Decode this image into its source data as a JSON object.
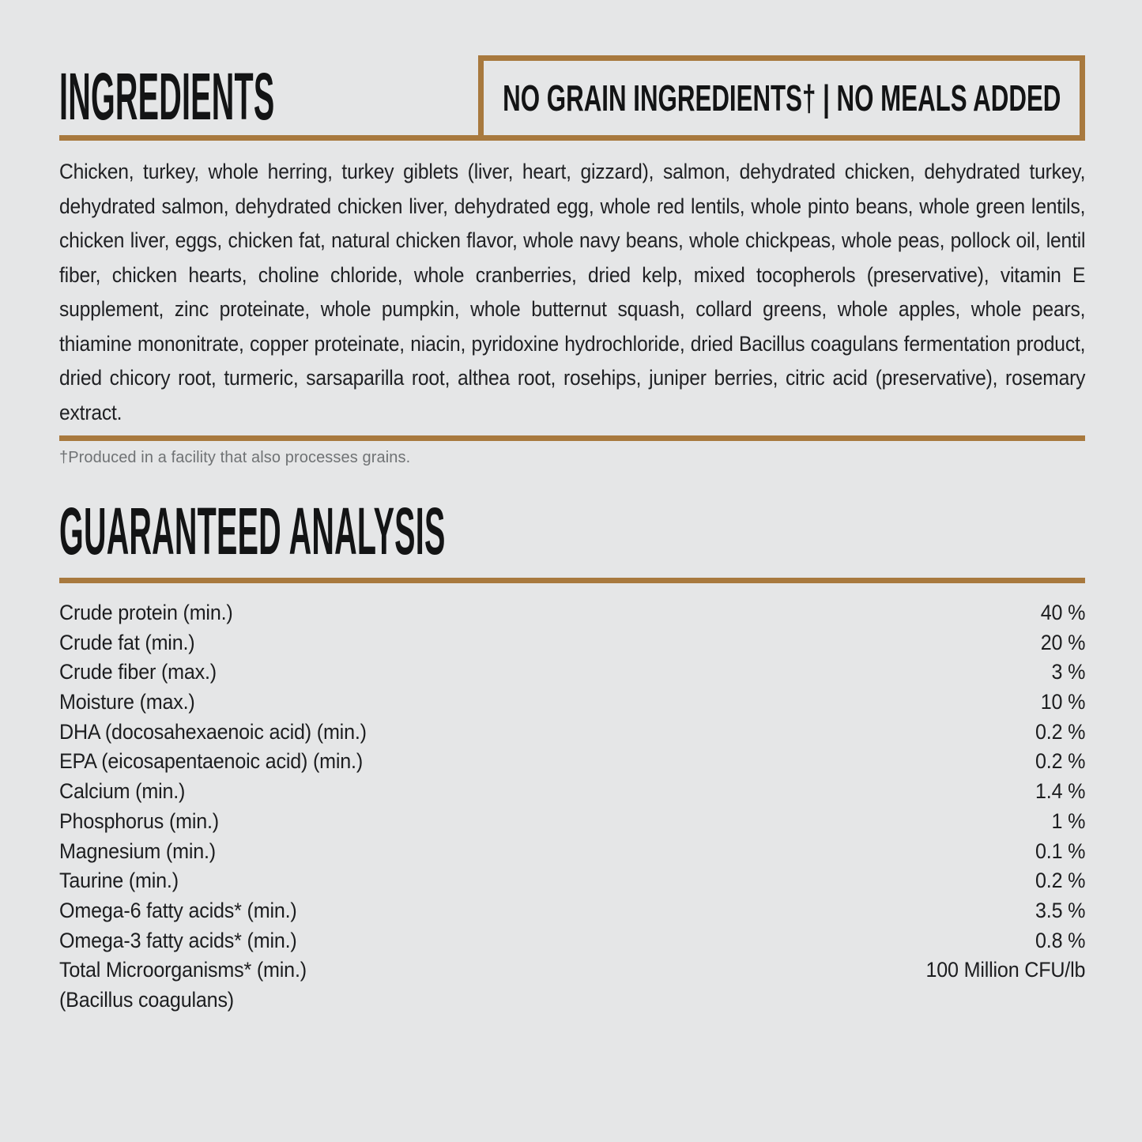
{
  "page": {
    "background_color": "#e5e6e7",
    "accent_color": "#a8793e"
  },
  "ingredients": {
    "title": "INGREDIENTS",
    "badge": "NO GRAIN INGREDIENTS† | NO MEALS ADDED",
    "body": "Chicken, turkey, whole herring, turkey giblets (liver, heart, gizzard), salmon, dehydrated chicken, dehydrated turkey, dehydrated salmon, dehydrated chicken liver, dehydrated egg, whole red lentils, whole pinto beans, whole green lentils, chicken liver, eggs, chicken fat, natural chicken flavor, whole navy beans, whole chickpeas, whole peas, pollock oil, lentil fiber, chicken hearts, choline chloride, whole cranberries, dried kelp, mixed tocopherols (preservative), vitamin E supplement, zinc proteinate, whole pumpkin, whole butternut squash, collard greens, whole apples, whole pears, thiamine mononitrate, copper proteinate, niacin, pyridoxine hydrochloride, dried Bacillus coagulans fermentation product, dried chicory root, turmeric, sarsaparilla root, althea root, rosehips, juniper berries, citric acid (preservative), rosemary extract.",
    "footnote": "†Produced in a facility that also processes grains."
  },
  "analysis": {
    "title": "GUARANTEED ANALYSIS",
    "rows": [
      {
        "label": "Crude protein (min.)",
        "value": "40 %"
      },
      {
        "label": "Crude fat (min.)",
        "value": "20 %"
      },
      {
        "label": "Crude fiber (max.)",
        "value": "3 %"
      },
      {
        "label": "Moisture (max.)",
        "value": "10 %"
      },
      {
        "label": "DHA (docosahexaenoic acid) (min.)",
        "value": "0.2 %"
      },
      {
        "label": "EPA (eicosapentaenoic acid) (min.)",
        "value": "0.2 %"
      },
      {
        "label": "Calcium (min.)",
        "value": "1.4 %"
      },
      {
        "label": "Phosphorus (min.)",
        "value": "1 %"
      },
      {
        "label": "Magnesium (min.)",
        "value": "0.1 %"
      },
      {
        "label": "Taurine (min.)",
        "value": "0.2 %"
      },
      {
        "label": "Omega-6 fatty acids* (min.)",
        "value": "3.5 %"
      },
      {
        "label": "Omega-3 fatty acids* (min.)",
        "value": "0.8 %"
      },
      {
        "label": "Total Microorganisms* (min.)",
        "value": "100 Million CFU/lb"
      },
      {
        "label": "(Bacillus coagulans)",
        "value": ""
      }
    ]
  }
}
